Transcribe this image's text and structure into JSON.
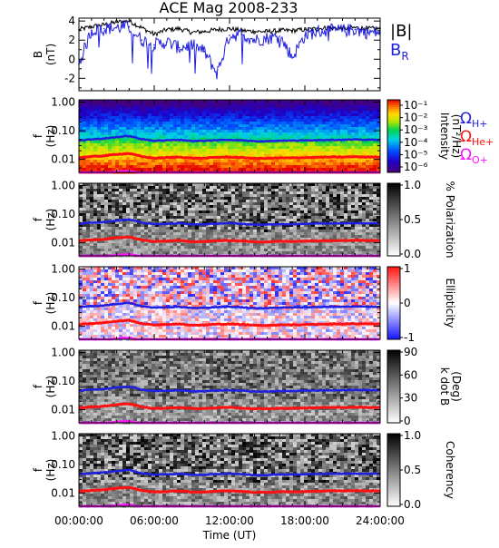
{
  "title": "ACE Mag 2008-233",
  "colors": {
    "total_field": "#000000",
    "radial_field": "#1f1fe0",
    "h_plus": "#1f1fe0",
    "he_plus": "#ff1010",
    "o_plus": "#ff10ff"
  },
  "legend": {
    "total_field": "|B|",
    "radial_field_base": "B",
    "radial_field_sub": "R",
    "omega": "Ω",
    "h_plus": "H+",
    "he_plus": "He+",
    "o_plus": "O+"
  },
  "time_axis": {
    "label": "Time (UT)",
    "ticks": [
      "00:00:00",
      "06:00:00",
      "12:00:00",
      "18:00:00",
      "24:00:00"
    ],
    "range_hours": [
      0,
      24
    ]
  },
  "freq_axis": {
    "label_top": "f",
    "label_bottom": "(Hz)",
    "ticks": [
      "1.00",
      "0.10",
      "0.01"
    ],
    "range_hz": [
      0.0035,
      1.2
    ],
    "scale": "log"
  },
  "panels": [
    {
      "id": "b-field",
      "type": "line",
      "ylabel_top": "B",
      "ylabel_bottom": "(nT)",
      "yticks": [
        "4",
        "2",
        "0",
        "-2"
      ],
      "ylim": [
        -3.3,
        4.3
      ]
    },
    {
      "id": "intensity",
      "type": "heatmap",
      "colorbar_label_1": "Intensity",
      "colorbar_label_2": "(nT²/Hz)",
      "colorbar_ticks": [
        "10⁻¹",
        "10⁻²",
        "10⁻³",
        "10⁻⁴",
        "10⁻⁵",
        "10⁻⁶"
      ],
      "colormap": "rainbow",
      "show_gyro_legend": true
    },
    {
      "id": "polarization",
      "type": "heatmap",
      "colorbar_label_1": "% Polarization",
      "colorbar_label_2": "",
      "colorbar_ticks": [
        "1.0",
        "0.5",
        "0.0"
      ],
      "colormap": "gray"
    },
    {
      "id": "ellipticity",
      "type": "heatmap",
      "colorbar_label_1": "Ellipticity",
      "colorbar_label_2": "",
      "colorbar_ticks": [
        "1",
        "0",
        "-1"
      ],
      "colormap": "bwr"
    },
    {
      "id": "k-dot-b",
      "type": "heatmap",
      "colorbar_label_1": "k dot B",
      "colorbar_label_2": "(Deg)",
      "colorbar_ticks": [
        "90",
        "60",
        "30",
        "0"
      ],
      "colormap": "gray"
    },
    {
      "id": "coherency",
      "type": "heatmap",
      "colorbar_label_1": "Coherency",
      "colorbar_label_2": "",
      "colorbar_ticks": [
        "1.0",
        "0.5",
        "0.0"
      ],
      "colormap": "gray"
    }
  ],
  "chart_data": {
    "type": "line",
    "x": [
      0,
      1,
      2,
      3,
      4,
      5,
      6,
      7,
      8,
      9,
      10,
      11,
      12,
      13,
      14,
      15,
      16,
      17,
      18,
      19,
      20,
      21,
      22,
      23,
      24
    ],
    "series": [
      {
        "name": "|B|",
        "values": [
          3.1,
          3.4,
          3.6,
          3.9,
          4.0,
          3.3,
          2.6,
          3.1,
          3.2,
          2.8,
          2.9,
          3.1,
          3.2,
          3.0,
          2.9,
          2.9,
          3.0,
          3.0,
          3.1,
          3.2,
          3.3,
          3.2,
          3.3,
          3.2,
          3.2
        ]
      },
      {
        "name": "BR",
        "values": [
          -0.5,
          3.0,
          3.2,
          3.3,
          3.4,
          2.0,
          1.5,
          1.8,
          1.2,
          1.5,
          0.8,
          -1.5,
          2.5,
          2.6,
          2.0,
          2.2,
          2.4,
          0.2,
          2.5,
          2.9,
          3.0,
          3.0,
          3.1,
          2.8,
          2.8
        ]
      }
    ],
    "gyrofrequencies": {
      "x": [
        0,
        1,
        2,
        3,
        4,
        5,
        6,
        7,
        8,
        9,
        10,
        11,
        12,
        13,
        14,
        15,
        16,
        17,
        18,
        19,
        20,
        21,
        22,
        23,
        24
      ],
      "H+": [
        0.046,
        0.05,
        0.053,
        0.06,
        0.065,
        0.05,
        0.045,
        0.046,
        0.048,
        0.044,
        0.044,
        0.047,
        0.048,
        0.046,
        0.043,
        0.043,
        0.045,
        0.045,
        0.046,
        0.047,
        0.048,
        0.048,
        0.049,
        0.048,
        0.048
      ],
      "He+": [
        0.0115,
        0.0125,
        0.0133,
        0.015,
        0.016,
        0.0125,
        0.011,
        0.0115,
        0.012,
        0.011,
        0.011,
        0.0118,
        0.012,
        0.0115,
        0.0108,
        0.0108,
        0.0112,
        0.0112,
        0.0115,
        0.0118,
        0.012,
        0.012,
        0.0123,
        0.012,
        0.012
      ],
      "O+": [
        0.0029,
        0.0031,
        0.0033,
        0.0037,
        0.004,
        0.0031,
        0.0028,
        0.0029,
        0.003,
        0.0028,
        0.0028,
        0.003,
        0.003,
        0.0029,
        0.0027,
        0.0027,
        0.0028,
        0.0028,
        0.0029,
        0.003,
        0.003,
        0.003,
        0.0031,
        0.003,
        0.003
      ]
    }
  }
}
